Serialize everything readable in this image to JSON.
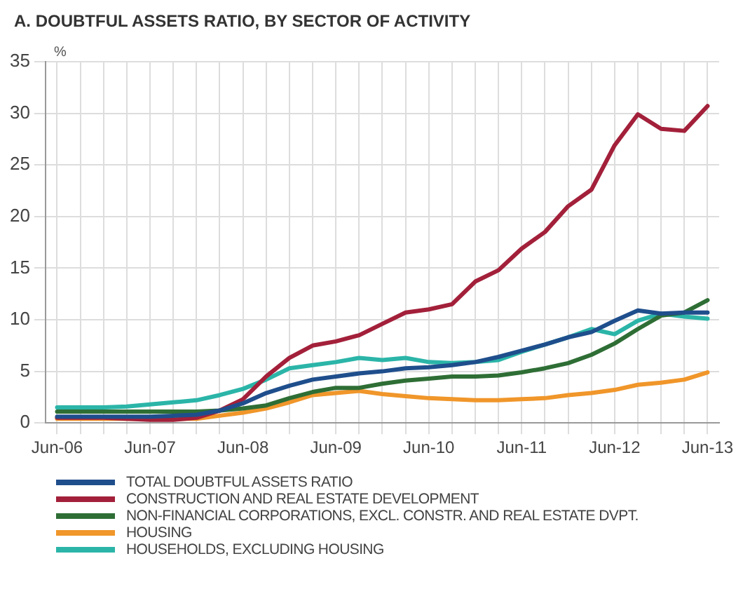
{
  "chart_data": {
    "type": "line",
    "title": "A.  DOUBTFUL ASSETS RATIO, BY SECTOR OF ACTIVITY",
    "ylabel": "%",
    "categories": [
      "Jun-06",
      null,
      null,
      null,
      "Jun-07",
      null,
      null,
      null,
      "Jun-08",
      null,
      null,
      null,
      "Jun-09",
      null,
      null,
      null,
      "Jun-10",
      null,
      null,
      null,
      "Jun-11",
      null,
      null,
      null,
      "Jun-12",
      null,
      null,
      null,
      "Jun-13"
    ],
    "series": [
      {
        "name": "TOTAL DOUBTFUL ASSETS RATIO",
        "color": "#1f4e8c",
        "values": [
          0.6,
          0.6,
          0.6,
          0.6,
          0.6,
          0.7,
          0.8,
          1.2,
          1.9,
          2.9,
          3.6,
          4.2,
          4.5,
          4.8,
          5.0,
          5.3,
          5.4,
          5.6,
          5.9,
          6.4,
          7.0,
          7.6,
          8.3,
          8.8,
          9.9,
          10.9,
          10.6,
          10.7,
          10.7
        ]
      },
      {
        "name": "CONSTRUCTION AND REAL ESTATE DEVELOPMENT",
        "color": "#a3203a",
        "values": [
          0.5,
          0.5,
          0.5,
          0.4,
          0.3,
          0.3,
          0.5,
          1.2,
          2.3,
          4.5,
          6.3,
          7.5,
          7.9,
          8.5,
          9.6,
          10.7,
          11.0,
          11.5,
          13.7,
          14.8,
          16.9,
          18.5,
          21.0,
          22.6,
          26.9,
          29.9,
          28.5,
          28.3,
          30.7
        ]
      },
      {
        "name": "NON-FINANCIAL CORPORATIONS, EXCL. CONSTR. AND REAL ESTATE DVPT.",
        "color": "#2e6e35",
        "values": [
          1.1,
          1.1,
          1.1,
          1.1,
          1.1,
          1.1,
          1.1,
          1.2,
          1.4,
          1.7,
          2.4,
          3.0,
          3.4,
          3.4,
          3.8,
          4.1,
          4.3,
          4.5,
          4.5,
          4.6,
          4.9,
          5.3,
          5.8,
          6.6,
          7.7,
          9.1,
          10.4,
          10.7,
          11.9
        ]
      },
      {
        "name": "HOUSING",
        "color": "#f0962a",
        "values": [
          0.4,
          0.4,
          0.4,
          0.4,
          0.4,
          0.4,
          0.4,
          0.7,
          1.0,
          1.4,
          2.0,
          2.7,
          2.9,
          3.1,
          2.8,
          2.6,
          2.4,
          2.3,
          2.2,
          2.2,
          2.3,
          2.4,
          2.7,
          2.9,
          3.2,
          3.7,
          3.9,
          4.2,
          4.9
        ]
      },
      {
        "name": "HOUSEHOLDS, EXCLUDING HOUSING",
        "color": "#2bb5a8",
        "values": [
          1.5,
          1.5,
          1.5,
          1.6,
          1.8,
          2.0,
          2.2,
          2.7,
          3.3,
          4.2,
          5.3,
          5.6,
          5.9,
          6.3,
          6.1,
          6.3,
          5.9,
          5.8,
          5.9,
          6.1,
          6.9,
          7.6,
          8.3,
          9.1,
          8.6,
          9.9,
          10.6,
          10.3,
          10.1
        ]
      }
    ],
    "ylim": [
      0,
      35
    ],
    "yticks": [
      0,
      5,
      10,
      15,
      20,
      25,
      30,
      35
    ],
    "grid": true,
    "legend": "bottom",
    "marker": "none",
    "line_style": "solid"
  }
}
